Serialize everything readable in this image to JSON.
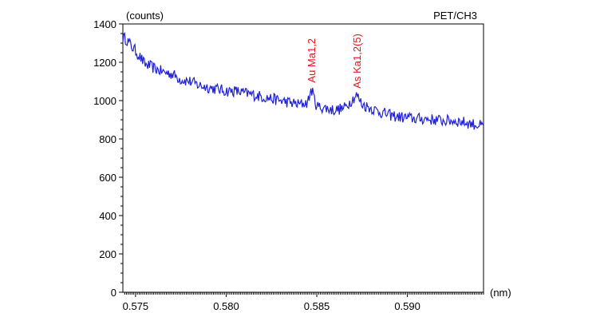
{
  "chart_data": {
    "type": "line",
    "title": "PET/CH3",
    "xlabel": "(nm)",
    "ylabel": "(counts)",
    "xlim": [
      0.5743,
      0.5942
    ],
    "ylim": [
      0,
      1400
    ],
    "x_ticks": [
      0.575,
      0.58,
      0.585,
      0.59
    ],
    "x_tick_labels": [
      "0.575",
      "0.580",
      "0.585",
      "0.590"
    ],
    "y_ticks": [
      0,
      200,
      400,
      600,
      800,
      1000,
      1200,
      1400
    ],
    "y_tick_labels": [
      "0",
      "200",
      "400",
      "600",
      "800",
      "1000",
      "1200",
      "1400"
    ],
    "grid": false,
    "line_color": "#1f1fd6",
    "annotation_color": "#e8131b",
    "series": [
      {
        "x": [
          0.5743,
          0.5745,
          0.5748,
          0.575,
          0.5753,
          0.5755,
          0.5758,
          0.576,
          0.5765,
          0.577,
          0.5775,
          0.578,
          0.5785,
          0.579,
          0.5795,
          0.58,
          0.5805,
          0.581,
          0.5815,
          0.582,
          0.5825,
          0.583,
          0.5835,
          0.584,
          0.5845,
          0.5847,
          0.585,
          0.5855,
          0.586,
          0.5865,
          0.5868,
          0.5872,
          0.5875,
          0.588,
          0.5885,
          0.589,
          0.5895,
          0.59,
          0.5905,
          0.591,
          0.5915,
          0.592,
          0.5925,
          0.593,
          0.5935,
          0.594,
          0.5942
        ],
        "y": [
          1330,
          1320,
          1280,
          1260,
          1220,
          1190,
          1180,
          1170,
          1150,
          1140,
          1110,
          1100,
          1080,
          1070,
          1060,
          1050,
          1050,
          1040,
          1030,
          1020,
          1010,
          1000,
          990,
          980,
          990,
          1060,
          970,
          960,
          950,
          960,
          990,
          1030,
          980,
          960,
          940,
          925,
          915,
          910,
          905,
          905,
          900,
          895,
          895,
          890,
          880,
          870,
          860
        ]
      }
    ],
    "annotations": [
      {
        "text": "Au Ma1,2",
        "x": 0.5847,
        "y": 1060
      },
      {
        "text": "As Ka1,2(5)",
        "x": 0.5872,
        "y": 1030
      }
    ]
  }
}
